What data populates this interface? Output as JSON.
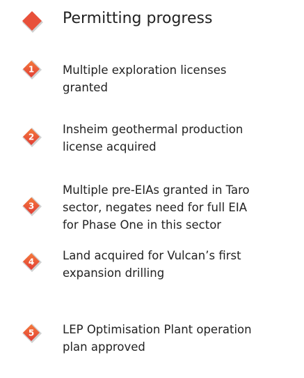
{
  "header": {
    "title": "Permitting progress"
  },
  "items": [
    {
      "number": "1",
      "lines": [
        "Multiple exploration licenses",
        "granted"
      ]
    },
    {
      "number": "2",
      "lines": [
        "Insheim geothermal production",
        "license acquired"
      ]
    },
    {
      "number": "3",
      "lines": [
        "Multiple pre-EIAs granted in Taro",
        "sector, negates need for full EIA",
        "for Phase One in this sector"
      ]
    },
    {
      "number": "4",
      "lines": [
        "Land acquired for Vulcan’s first",
        "expansion drilling"
      ]
    },
    {
      "number": "5",
      "lines": [
        "LEP Optimisation Plant operation",
        "plan approved"
      ]
    }
  ]
}
